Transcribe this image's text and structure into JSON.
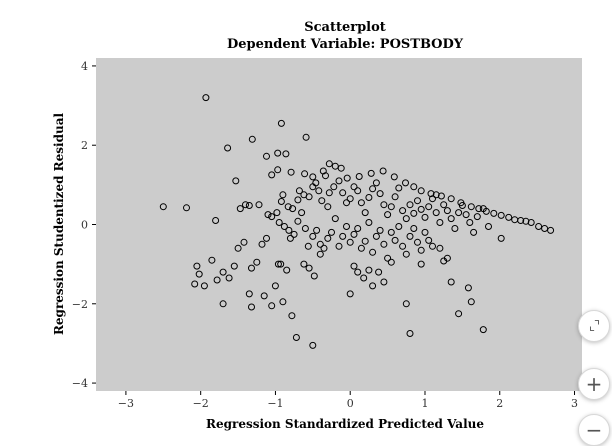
{
  "chart_data": {
    "type": "scatter",
    "title": "Scatterplot",
    "subtitle": "Dependent Variable: POSTBODY",
    "xlabel": "Regression Standardized Predicted Value",
    "ylabel": "Regression Studentized Residual",
    "xlim": [
      -3.4,
      3.1
    ],
    "ylim": [
      -4.2,
      4.2
    ],
    "xticks": [
      -3,
      -2,
      -1,
      0,
      1,
      2,
      3
    ],
    "yticks": [
      -4,
      -2,
      0,
      2,
      4
    ],
    "xtick_labels": [
      "−3",
      "−2",
      "−1",
      "0",
      "1",
      "2",
      "3"
    ],
    "ytick_labels": [
      "−4",
      "−2",
      "0",
      "2",
      "4"
    ],
    "background": "#cccccc",
    "grid": false,
    "marker": "open-circle",
    "points": [
      [
        -1.93,
        3.2
      ],
      [
        -0.92,
        2.55
      ],
      [
        -1.31,
        2.15
      ],
      [
        -0.59,
        2.2
      ],
      [
        -1.64,
        1.93
      ],
      [
        -0.97,
        1.8
      ],
      [
        -0.86,
        1.78
      ],
      [
        -1.12,
        1.72
      ],
      [
        -0.28,
        1.53
      ],
      [
        -0.2,
        1.47
      ],
      [
        -0.12,
        1.42
      ],
      [
        -0.36,
        1.35
      ],
      [
        -0.97,
        1.38
      ],
      [
        -1.05,
        1.25
      ],
      [
        -0.79,
        1.32
      ],
      [
        -0.5,
        1.2
      ],
      [
        -0.61,
        1.28
      ],
      [
        -0.33,
        1.23
      ],
      [
        -0.04,
        1.17
      ],
      [
        0.12,
        1.21
      ],
      [
        0.28,
        1.29
      ],
      [
        0.44,
        1.35
      ],
      [
        0.59,
        1.2
      ],
      [
        0.74,
        1.05
      ],
      [
        0.85,
        0.95
      ],
      [
        0.95,
        0.85
      ],
      [
        1.08,
        0.78
      ],
      [
        1.15,
        0.75
      ],
      [
        1.22,
        0.72
      ],
      [
        1.35,
        0.65
      ],
      [
        1.48,
        0.55
      ],
      [
        1.62,
        0.45
      ],
      [
        1.72,
        0.4
      ],
      [
        1.82,
        0.33
      ],
      [
        1.92,
        0.28
      ],
      [
        2.02,
        0.23
      ],
      [
        2.12,
        0.18
      ],
      [
        2.2,
        0.12
      ],
      [
        2.28,
        0.1
      ],
      [
        2.35,
        0.08
      ],
      [
        2.42,
        0.05
      ],
      [
        2.52,
        -0.05
      ],
      [
        2.6,
        -0.1
      ],
      [
        2.68,
        -0.15
      ],
      [
        2.02,
        -0.35
      ],
      [
        -2.5,
        0.45
      ],
      [
        -2.19,
        0.42
      ],
      [
        -1.8,
        0.1
      ],
      [
        -1.53,
        1.1
      ],
      [
        -1.47,
        0.4
      ],
      [
        -1.4,
        0.5
      ],
      [
        -1.35,
        0.48
      ],
      [
        -1.22,
        0.5
      ],
      [
        -1.1,
        0.25
      ],
      [
        -1.05,
        0.2
      ],
      [
        -0.92,
        0.58
      ],
      [
        -0.9,
        0.75
      ],
      [
        -0.83,
        0.45
      ],
      [
        -0.77,
        0.4
      ],
      [
        -0.7,
        0.62
      ],
      [
        -0.68,
        0.85
      ],
      [
        -0.62,
        0.75
      ],
      [
        -0.55,
        0.7
      ],
      [
        -0.5,
        0.95
      ],
      [
        -0.46,
        1.05
      ],
      [
        -0.42,
        0.85
      ],
      [
        -0.38,
        0.6
      ],
      [
        -0.3,
        0.45
      ],
      [
        -0.28,
        0.8
      ],
      [
        -0.22,
        0.95
      ],
      [
        -0.15,
        1.1
      ],
      [
        -0.1,
        0.8
      ],
      [
        -0.05,
        0.55
      ],
      [
        0.0,
        0.65
      ],
      [
        0.05,
        0.95
      ],
      [
        0.1,
        0.85
      ],
      [
        0.15,
        0.55
      ],
      [
        0.2,
        0.3
      ],
      [
        0.25,
        0.68
      ],
      [
        0.3,
        0.9
      ],
      [
        0.35,
        1.05
      ],
      [
        0.4,
        0.78
      ],
      [
        0.45,
        0.5
      ],
      [
        0.5,
        0.25
      ],
      [
        0.55,
        0.45
      ],
      [
        0.6,
        0.7
      ],
      [
        0.65,
        0.92
      ],
      [
        0.7,
        0.35
      ],
      [
        0.75,
        0.15
      ],
      [
        0.8,
        0.5
      ],
      [
        0.85,
        0.28
      ],
      [
        0.9,
        0.6
      ],
      [
        0.95,
        0.38
      ],
      [
        1.0,
        0.18
      ],
      [
        1.05,
        0.45
      ],
      [
        1.1,
        0.65
      ],
      [
        1.15,
        0.3
      ],
      [
        1.2,
        0.05
      ],
      [
        1.25,
        0.5
      ],
      [
        1.3,
        0.35
      ],
      [
        1.35,
        0.15
      ],
      [
        1.4,
        -0.1
      ],
      [
        1.45,
        0.3
      ],
      [
        1.5,
        0.48
      ],
      [
        1.55,
        0.25
      ],
      [
        1.6,
        0.05
      ],
      [
        1.65,
        -0.2
      ],
      [
        1.7,
        0.2
      ],
      [
        1.78,
        0.4
      ],
      [
        1.85,
        -0.05
      ],
      [
        -0.98,
        0.3
      ],
      [
        -0.95,
        0.05
      ],
      [
        -0.88,
        -0.05
      ],
      [
        -0.82,
        -0.15
      ],
      [
        -0.8,
        -0.35
      ],
      [
        -0.75,
        -0.25
      ],
      [
        -0.7,
        0.08
      ],
      [
        -0.65,
        0.3
      ],
      [
        -0.6,
        -0.1
      ],
      [
        -0.56,
        -0.55
      ],
      [
        -0.5,
        -0.3
      ],
      [
        -0.45,
        -0.15
      ],
      [
        -0.4,
        -0.5
      ],
      [
        -0.35,
        -0.6
      ],
      [
        -0.3,
        -0.35
      ],
      [
        -0.25,
        -0.2
      ],
      [
        -0.2,
        0.15
      ],
      [
        -0.15,
        -0.55
      ],
      [
        -0.1,
        -0.3
      ],
      [
        -0.05,
        -0.05
      ],
      [
        0.0,
        -0.45
      ],
      [
        0.05,
        -0.25
      ],
      [
        0.1,
        -0.1
      ],
      [
        0.15,
        -0.6
      ],
      [
        0.2,
        -0.42
      ],
      [
        0.25,
        0.05
      ],
      [
        0.3,
        -0.7
      ],
      [
        0.35,
        -0.3
      ],
      [
        0.4,
        -0.15
      ],
      [
        0.45,
        -0.5
      ],
      [
        0.5,
        -0.85
      ],
      [
        0.55,
        -0.2
      ],
      [
        0.6,
        -0.4
      ],
      [
        0.65,
        -0.05
      ],
      [
        0.7,
        -0.55
      ],
      [
        0.75,
        -0.75
      ],
      [
        0.8,
        -0.3
      ],
      [
        0.85,
        -0.1
      ],
      [
        0.9,
        -0.45
      ],
      [
        0.95,
        -0.65
      ],
      [
        1.0,
        -0.2
      ],
      [
        1.05,
        -0.4
      ],
      [
        1.1,
        -0.55
      ],
      [
        1.2,
        -0.6
      ],
      [
        1.3,
        -0.85
      ],
      [
        -1.12,
        -0.35
      ],
      [
        -1.18,
        -0.5
      ],
      [
        -1.25,
        -0.95
      ],
      [
        -1.32,
        -1.1
      ],
      [
        -1.42,
        -0.45
      ],
      [
        -1.5,
        -0.6
      ],
      [
        -1.55,
        -1.05
      ],
      [
        -1.62,
        -1.35
      ],
      [
        -1.7,
        -1.2
      ],
      [
        -1.78,
        -1.4
      ],
      [
        -1.85,
        -0.9
      ],
      [
        -1.95,
        -1.55
      ],
      [
        -2.02,
        -1.25
      ],
      [
        -2.05,
        -1.05
      ],
      [
        -2.08,
        -1.5
      ],
      [
        -1.35,
        -1.75
      ],
      [
        -1.32,
        -2.08
      ],
      [
        -1.15,
        -1.8
      ],
      [
        -1.05,
        -2.05
      ],
      [
        -1.0,
        -1.55
      ],
      [
        -0.96,
        -1.0
      ],
      [
        -0.9,
        -1.95
      ],
      [
        -0.85,
        -1.15
      ],
      [
        -0.78,
        -2.3
      ],
      [
        -0.72,
        -2.85
      ],
      [
        -0.62,
        -1.0
      ],
      [
        -0.55,
        -1.1
      ],
      [
        -0.48,
        -1.3
      ],
      [
        -0.5,
        -3.05
      ],
      [
        -0.4,
        -0.75
      ],
      [
        -1.7,
        -2.0
      ],
      [
        -0.93,
        -1.0
      ],
      [
        0.0,
        -1.75
      ],
      [
        0.05,
        -1.05
      ],
      [
        0.1,
        -1.2
      ],
      [
        0.18,
        -1.35
      ],
      [
        0.25,
        -1.15
      ],
      [
        0.3,
        -1.55
      ],
      [
        0.38,
        -1.2
      ],
      [
        0.45,
        -1.45
      ],
      [
        0.55,
        -0.95
      ],
      [
        0.75,
        -2.0
      ],
      [
        0.8,
        -2.75
      ],
      [
        0.95,
        -1.0
      ],
      [
        1.25,
        -0.92
      ],
      [
        1.35,
        -1.45
      ],
      [
        1.45,
        -2.25
      ],
      [
        1.58,
        -1.6
      ],
      [
        1.62,
        -1.95
      ],
      [
        1.78,
        -2.65
      ]
    ]
  },
  "controls": {
    "collapse_icon": "collapse-arrows-icon",
    "zoom_in_label": "+",
    "zoom_out_label": "−"
  }
}
